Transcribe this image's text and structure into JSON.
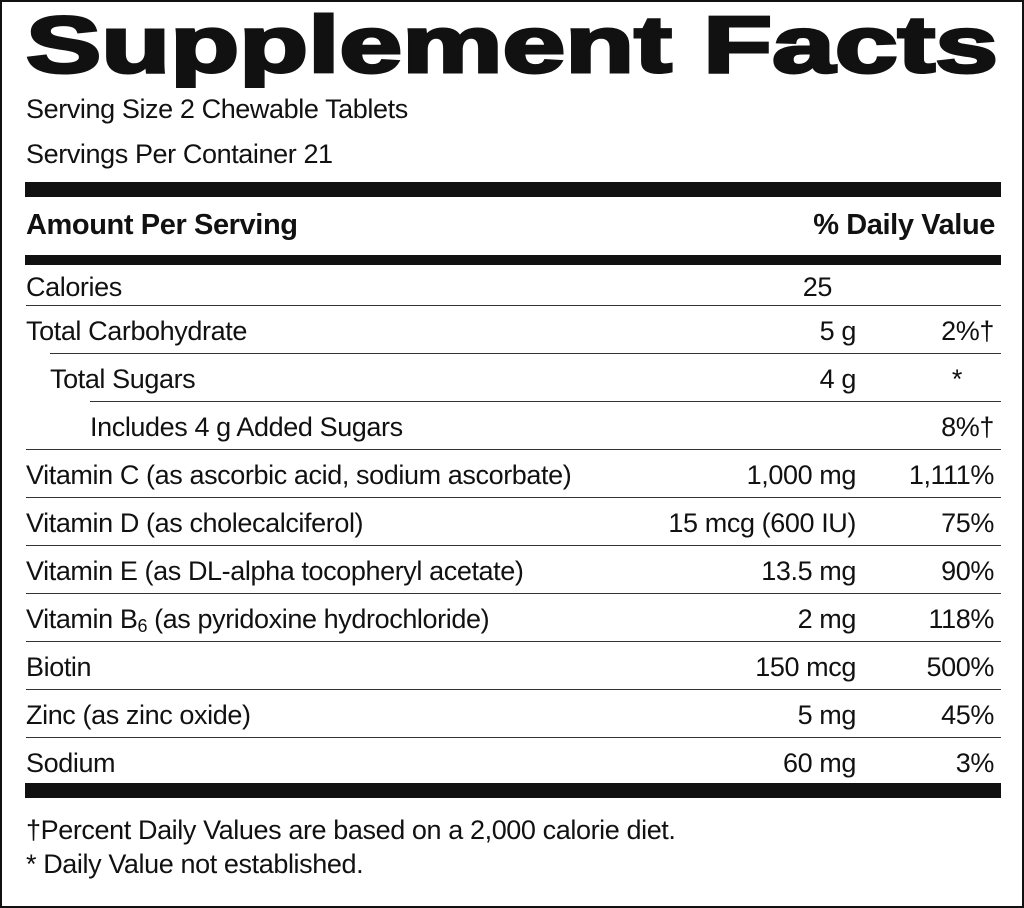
{
  "header": {
    "title": "Supplement Facts",
    "serving_size": "Serving Size 2 Chewable Tablets",
    "servings_per_container": "Servings Per Container 21"
  },
  "table": {
    "columns": {
      "amount_per_serving": "Amount Per Serving",
      "daily_value": "% Daily Value"
    },
    "rows": [
      {
        "name": "Calories",
        "amount": "25"
      },
      {
        "name": "Total Carbohydrate",
        "amount": "5 g",
        "daily_value": "2%†"
      },
      {
        "name": "Total Sugars",
        "amount": "4 g",
        "daily_value": "*"
      },
      {
        "name": "Includes 4 g Added Sugars",
        "daily_value": "8%†"
      },
      {
        "name": "Vitamin C (as ascorbic acid, sodium ascorbate)",
        "amount": "1,000 mg",
        "daily_value": "1,111%"
      },
      {
        "name": "Vitamin D (as cholecalciferol)",
        "amount": "15 mcg (600 IU)",
        "daily_value": "75%"
      },
      {
        "name": "Vitamin E (as DL-alpha tocopheryl acetate)",
        "amount": "13.5 mg",
        "daily_value": "90%"
      },
      {
        "name": "Vitamin B",
        "name_subscript": "6",
        "name_rest": "(as pyridoxine hydrochloride)",
        "amount": "2 mg",
        "daily_value": "118%"
      },
      {
        "name": "Biotin",
        "amount": "150 mcg",
        "daily_value": "500%"
      },
      {
        "name": "Zinc (as zinc oxide)",
        "amount": "5 mg",
        "daily_value": "45%"
      },
      {
        "name": "Sodium",
        "amount": "60 mg",
        "daily_value": "3%"
      }
    ]
  },
  "footnotes": [
    "†Percent Daily Values are based on a 2,000 calorie diet.",
    "* Daily Value not established."
  ]
}
